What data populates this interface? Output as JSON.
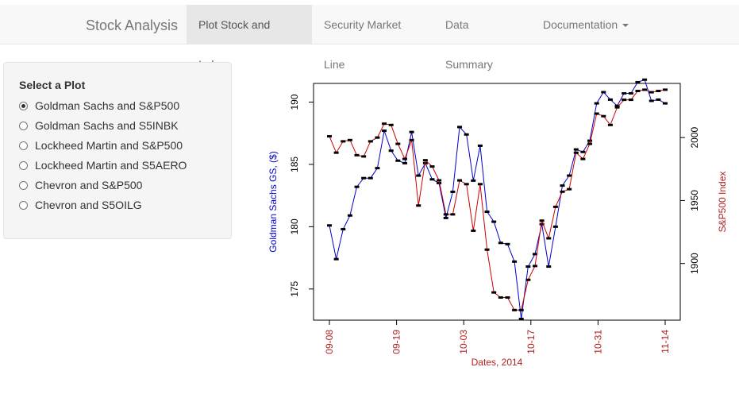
{
  "navbar": {
    "brand": "Stock Analysis",
    "tabs": [
      {
        "label": "Plot Stock and Index",
        "active": true
      },
      {
        "label": "Security Market Line",
        "active": false
      },
      {
        "label": "Data Summary",
        "active": false
      },
      {
        "label": "Documentation",
        "active": false,
        "dropdown": true
      }
    ]
  },
  "sidebar": {
    "title": "Select a Plot",
    "options": [
      {
        "label": "Goldman Sachs and S&P500",
        "checked": true
      },
      {
        "label": "Goldman Sachs and S5INBK",
        "checked": false
      },
      {
        "label": "Lockheed Martin and S&P500",
        "checked": false
      },
      {
        "label": "Lockheed Martin and S5AERO",
        "checked": false
      },
      {
        "label": "Chevron and S&P500",
        "checked": false
      },
      {
        "label": "Chevron and S5OILG",
        "checked": false
      }
    ]
  },
  "chart_data": {
    "type": "line",
    "xlabel": "Dates, 2014",
    "ylabel_left": "Goldman Sachs GS, ($)",
    "ylabel_right": "S&P500 Index",
    "x_ticks": [
      "09-08",
      "09-19",
      "10-03",
      "10-17",
      "10-31",
      "11-14"
    ],
    "left_ticks": [
      175,
      180,
      185,
      190
    ],
    "right_ticks": [
      1900,
      1950,
      2000
    ],
    "ylim_left": [
      172.5,
      191.5
    ],
    "ylim_right": [
      1855,
      2043
    ],
    "colors": {
      "left_series": "#0000cc",
      "right_series": "#cc0000",
      "axis_text_red": "#b22222"
    },
    "series": [
      {
        "axis": "left",
        "values": [
          180.1,
          177.4,
          179.8,
          180.9,
          183.2,
          183.9,
          183.9,
          184.7,
          187.7,
          186.1,
          185.3,
          185.1,
          187.6,
          184.1,
          185.1,
          183.8,
          183.5,
          180.7,
          182.8,
          188.0,
          187.4,
          183.7,
          186.5,
          181.2,
          180.4,
          178.7,
          178.6,
          177.2,
          172.6,
          176.8,
          177.8,
          180.2,
          176.8,
          180.0,
          183.3,
          184.1,
          186.2,
          186.0,
          186.9,
          189.9,
          190.8,
          190.2,
          189.7,
          190.7,
          190.7,
          191.6,
          191.8,
          190.1,
          190.2,
          189.9
        ]
      },
      {
        "axis": "right",
        "values": [
          2001,
          1988,
          1997,
          1998,
          1986,
          1985,
          1997,
          2000,
          2011,
          2010,
          1995,
          1983,
          1998,
          1946,
          1982,
          1977,
          1966,
          1939,
          1939,
          1966,
          1963,
          1926,
          1963,
          1911,
          1877,
          1873,
          1873,
          1863,
          1863,
          1887,
          1898,
          1934,
          1920,
          1945,
          1957,
          1959,
          1988,
          1983,
          1995,
          2019,
          2017,
          2010,
          2024,
          2030,
          2030,
          2037,
          2038,
          2036,
          2037,
          2038
        ]
      }
    ]
  }
}
